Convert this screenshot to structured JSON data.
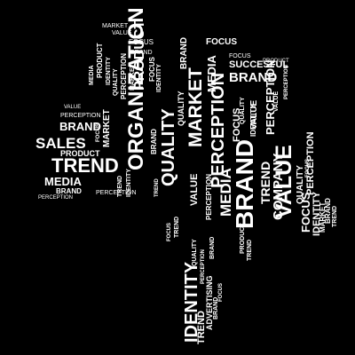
{
  "image": {
    "subject": "tree-shaped word cloud",
    "background": "#000000",
    "text_color": "#ffffff"
  },
  "words": {
    "organization": "ORGANIZATION",
    "quality": "QUALITY",
    "market": "MARKET",
    "brand": "BRAND",
    "media": "MEDIA",
    "perception": "PERCEPTION",
    "trend": "TREND",
    "sales": "SALES",
    "value": "VALUE",
    "company": "COMPANY",
    "identity": "IDENTITY",
    "product": "PRODUCT",
    "focus": "FOCUS",
    "succesful": "SUCCESFUL",
    "advertising": "ADVERTISING"
  }
}
